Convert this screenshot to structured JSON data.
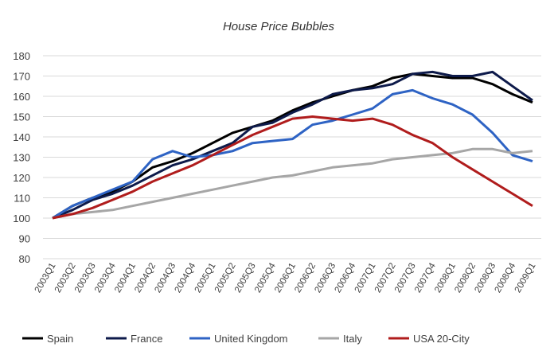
{
  "chart_data": {
    "type": "line",
    "title": "House Price Bubbles",
    "xlabel": "",
    "ylabel": "",
    "ylim": [
      80,
      180
    ],
    "yticks": [
      80,
      90,
      100,
      110,
      120,
      130,
      140,
      150,
      160,
      170,
      180
    ],
    "grid": true,
    "legend_position": "bottom",
    "categories": [
      "2003Q1",
      "2003Q2",
      "2003Q3",
      "2003Q4",
      "2004Q1",
      "2004Q2",
      "2004Q3",
      "2004Q4",
      "2005Q1",
      "2005Q2",
      "2005Q3",
      "2005Q4",
      "2006Q1",
      "2006Q2",
      "2006Q3",
      "2006Q4",
      "2007Q1",
      "2007Q2",
      "2007Q3",
      "2007Q4",
      "2008Q1",
      "2008Q2",
      "2008Q3",
      "2008Q4",
      "2009Q1"
    ],
    "series": [
      {
        "name": "Spain",
        "color": "#000000",
        "values": [
          100,
          106,
          110,
          113,
          118,
          125,
          128,
          132,
          137,
          142,
          145,
          148,
          153,
          157,
          160,
          163,
          165,
          169,
          171,
          170,
          169,
          169,
          166,
          161,
          157
        ]
      },
      {
        "name": "France",
        "color": "#0d1a4a",
        "values": [
          100,
          104,
          109,
          112,
          116,
          121,
          126,
          129,
          133,
          137,
          145,
          147,
          152,
          156,
          161,
          163,
          164,
          166,
          171,
          172,
          170,
          170,
          172,
          165,
          158
        ]
      },
      {
        "name": "United Kingdom",
        "color": "#2e63c4",
        "values": [
          100,
          106,
          110,
          114,
          118,
          129,
          133,
          130,
          131,
          133,
          137,
          138,
          139,
          146,
          148,
          151,
          154,
          161,
          163,
          159,
          156,
          151,
          142,
          131,
          128
        ]
      },
      {
        "name": "Italy",
        "color": "#a6a6a6",
        "values": [
          100,
          102,
          103,
          104,
          106,
          108,
          110,
          112,
          114,
          116,
          118,
          120,
          121,
          123,
          125,
          126,
          127,
          129,
          130,
          131,
          132,
          134,
          134,
          132,
          133
        ]
      },
      {
        "name": "USA 20-City",
        "color": "#b01c1c",
        "values": [
          100,
          102,
          105,
          109,
          113,
          118,
          122,
          126,
          131,
          136,
          141,
          145,
          149,
          150,
          149,
          148,
          149,
          146,
          141,
          137,
          130,
          124,
          118,
          112,
          106
        ]
      }
    ]
  }
}
